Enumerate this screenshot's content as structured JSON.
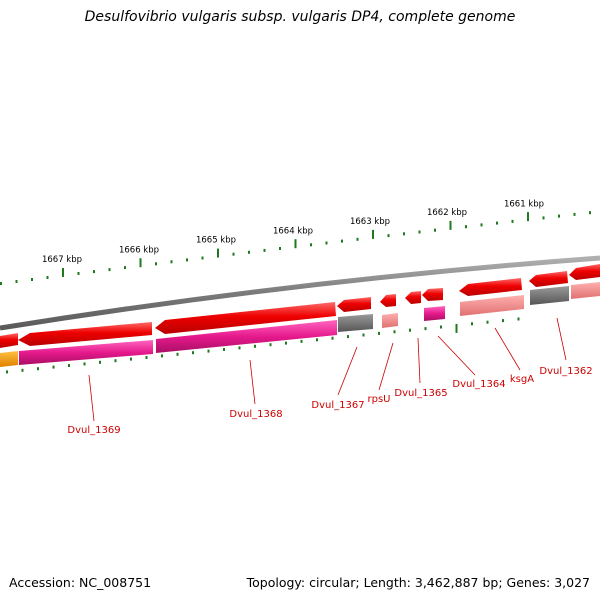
{
  "title": "Desulfovibrio vulgaris subsp. vulgaris DP4, complete genome",
  "accession": "Accession: NC_008751",
  "summary": "Topology: circular; Length: 3,462,887 bp; Genes: 3,027",
  "ruler_labels": [
    "1661 kbp",
    "1662 kbp",
    "1663 kbp",
    "1664 kbp",
    "1665 kbp",
    "1666 kbp",
    "1667 kbp"
  ],
  "gene_labels": [
    "Dvul_1362",
    "ksgA",
    "Dvul_1364",
    "Dvul_1365",
    "rpsU",
    "Dvul_1367",
    "Dvul_1368",
    "Dvul_1369"
  ],
  "colors": {
    "backbone": "#8a8a8a",
    "gene_red": "#e60000",
    "gene_red_light": "#ff5c5c",
    "cds_magenta": "#e6198c",
    "cds_pink": "#f08a8a",
    "cds_gray": "#707070",
    "cds_orange": "#f59a00",
    "tick_green": "#1f7a1f",
    "label_red": "#cc0000"
  }
}
